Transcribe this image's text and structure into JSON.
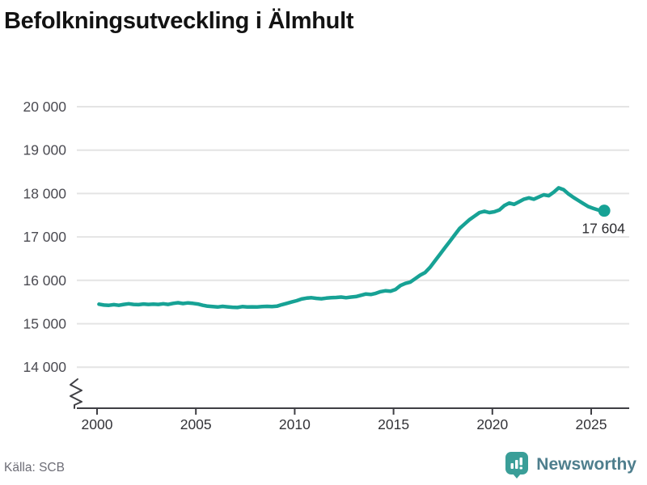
{
  "header": {
    "title": "Befolkningsutveckling i Älmhult"
  },
  "footer": {
    "source": "Källa: SCB",
    "brand_name": "Newsworthy",
    "brand_color": "#3a9e98",
    "brand_text_color": "#4e7e8d"
  },
  "chart_data": {
    "type": "line",
    "title": "Befolkningsutveckling i Älmhult",
    "source": "Källa: SCB",
    "series_name": "Befolkning i Älmhult",
    "series_color": "#17a295",
    "grid": "horizontal-only",
    "legend": "none",
    "axis_break_bottom_left": true,
    "xlim": [
      2000,
      2026
    ],
    "ylim": [
      14000,
      20000
    ],
    "x_ticks": [
      2000,
      2005,
      2010,
      2015,
      2020,
      2025
    ],
    "x_tick_labels": [
      "2000",
      "2005",
      "2010",
      "2015",
      "2020",
      "2025"
    ],
    "y_ticks": [
      14000,
      15000,
      16000,
      17000,
      18000,
      19000,
      20000
    ],
    "y_tick_labels": [
      "14 000",
      "15 000",
      "16 000",
      "17 000",
      "18 000",
      "19 000",
      "20 000"
    ],
    "end_value": 17604,
    "end_label": "17 604",
    "points": [
      [
        2000.1,
        15450
      ],
      [
        2000.35,
        15430
      ],
      [
        2000.6,
        15425
      ],
      [
        2000.85,
        15440
      ],
      [
        2001.1,
        15425
      ],
      [
        2001.35,
        15445
      ],
      [
        2001.6,
        15460
      ],
      [
        2001.85,
        15445
      ],
      [
        2002.1,
        15440
      ],
      [
        2002.35,
        15455
      ],
      [
        2002.6,
        15445
      ],
      [
        2002.85,
        15450
      ],
      [
        2003.1,
        15445
      ],
      [
        2003.35,
        15460
      ],
      [
        2003.6,
        15445
      ],
      [
        2003.85,
        15470
      ],
      [
        2004.1,
        15485
      ],
      [
        2004.35,
        15465
      ],
      [
        2004.6,
        15480
      ],
      [
        2004.85,
        15470
      ],
      [
        2005.1,
        15455
      ],
      [
        2005.35,
        15425
      ],
      [
        2005.6,
        15405
      ],
      [
        2005.85,
        15395
      ],
      [
        2006.1,
        15385
      ],
      [
        2006.35,
        15400
      ],
      [
        2006.6,
        15390
      ],
      [
        2006.85,
        15380
      ],
      [
        2007.1,
        15375
      ],
      [
        2007.35,
        15395
      ],
      [
        2007.6,
        15385
      ],
      [
        2007.85,
        15390
      ],
      [
        2008.1,
        15385
      ],
      [
        2008.35,
        15395
      ],
      [
        2008.6,
        15400
      ],
      [
        2008.85,
        15395
      ],
      [
        2009.1,
        15405
      ],
      [
        2009.35,
        15440
      ],
      [
        2009.6,
        15470
      ],
      [
        2009.85,
        15500
      ],
      [
        2010.1,
        15530
      ],
      [
        2010.35,
        15570
      ],
      [
        2010.6,
        15590
      ],
      [
        2010.85,
        15600
      ],
      [
        2011.1,
        15585
      ],
      [
        2011.35,
        15575
      ],
      [
        2011.6,
        15590
      ],
      [
        2011.85,
        15600
      ],
      [
        2012.1,
        15605
      ],
      [
        2012.35,
        15615
      ],
      [
        2012.6,
        15600
      ],
      [
        2012.85,
        15615
      ],
      [
        2013.1,
        15625
      ],
      [
        2013.35,
        15655
      ],
      [
        2013.6,
        15685
      ],
      [
        2013.85,
        15675
      ],
      [
        2014.1,
        15700
      ],
      [
        2014.35,
        15740
      ],
      [
        2014.6,
        15760
      ],
      [
        2014.85,
        15750
      ],
      [
        2015.1,
        15790
      ],
      [
        2015.35,
        15880
      ],
      [
        2015.6,
        15930
      ],
      [
        2015.85,
        15960
      ],
      [
        2016.1,
        16040
      ],
      [
        2016.35,
        16120
      ],
      [
        2016.6,
        16180
      ],
      [
        2016.85,
        16300
      ],
      [
        2017.1,
        16450
      ],
      [
        2017.35,
        16600
      ],
      [
        2017.6,
        16750
      ],
      [
        2017.85,
        16900
      ],
      [
        2018.1,
        17050
      ],
      [
        2018.35,
        17200
      ],
      [
        2018.6,
        17300
      ],
      [
        2018.85,
        17400
      ],
      [
        2019.1,
        17480
      ],
      [
        2019.35,
        17560
      ],
      [
        2019.6,
        17590
      ],
      [
        2019.85,
        17560
      ],
      [
        2020.1,
        17580
      ],
      [
        2020.35,
        17620
      ],
      [
        2020.6,
        17720
      ],
      [
        2020.85,
        17780
      ],
      [
        2021.1,
        17750
      ],
      [
        2021.35,
        17810
      ],
      [
        2021.6,
        17870
      ],
      [
        2021.85,
        17900
      ],
      [
        2022.1,
        17870
      ],
      [
        2022.35,
        17920
      ],
      [
        2022.6,
        17970
      ],
      [
        2022.85,
        17950
      ],
      [
        2023.1,
        18030
      ],
      [
        2023.35,
        18130
      ],
      [
        2023.6,
        18090
      ],
      [
        2023.85,
        17990
      ],
      [
        2024.1,
        17910
      ],
      [
        2024.35,
        17840
      ],
      [
        2024.6,
        17770
      ],
      [
        2024.85,
        17700
      ],
      [
        2025.1,
        17660
      ],
      [
        2025.35,
        17620
      ],
      [
        2025.66,
        17604
      ]
    ]
  }
}
